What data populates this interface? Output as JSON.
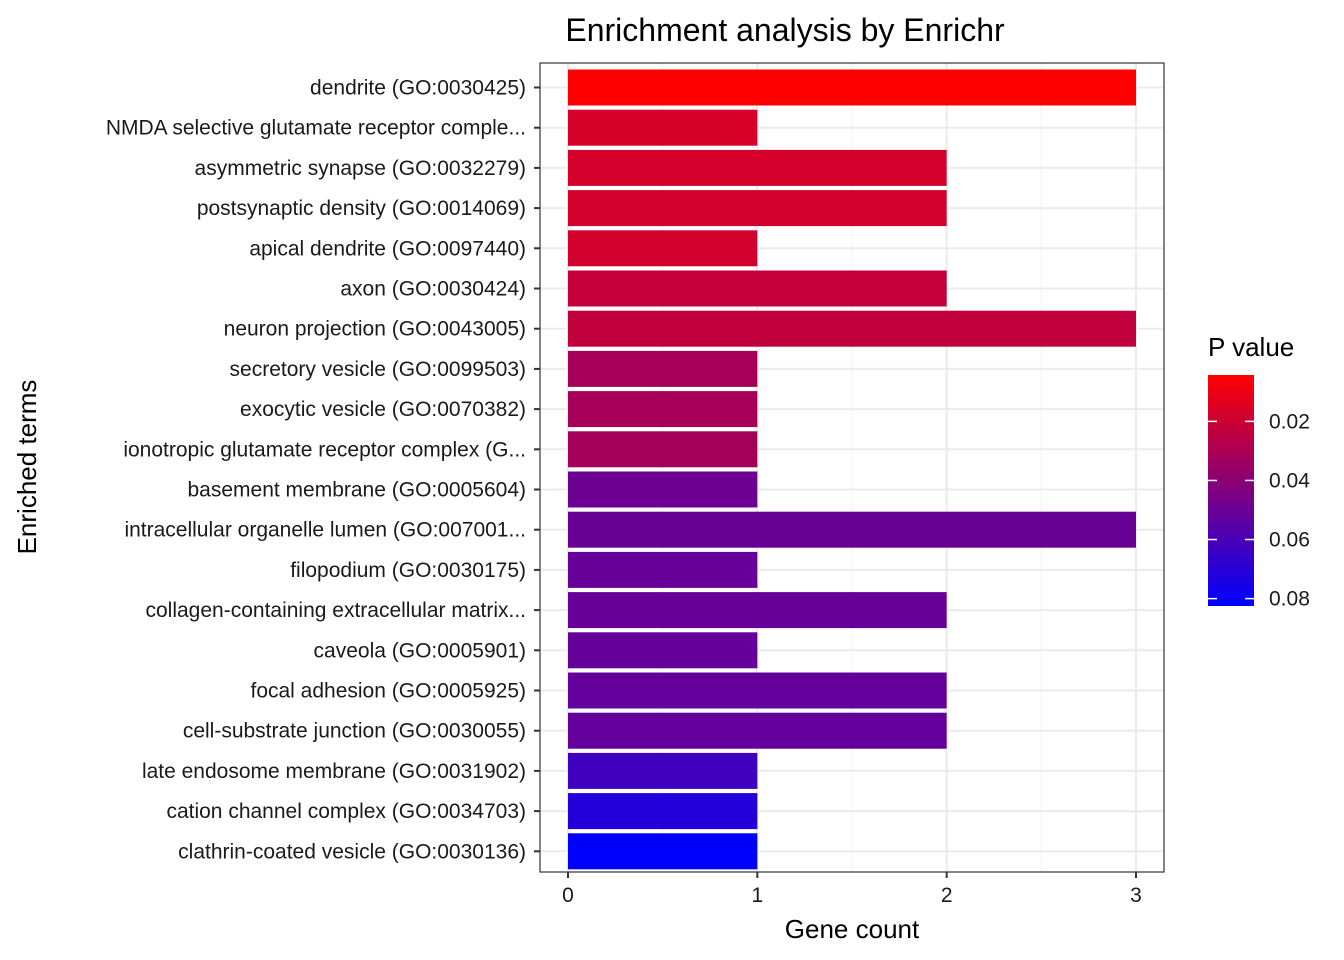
{
  "chart_data": {
    "type": "bar",
    "orientation": "horizontal",
    "title": "Enrichment analysis by Enrichr",
    "xlabel": "Gene count",
    "ylabel": "Enriched terms",
    "xlim": [
      0,
      3
    ],
    "xticks": [
      "0",
      "1",
      "2",
      "3"
    ],
    "grid": true,
    "categories": [
      "dendrite (GO:0030425)",
      "NMDA selective glutamate receptor comple...",
      "asymmetric synapse (GO:0032279)",
      "postsynaptic density (GO:0014069)",
      "apical dendrite (GO:0097440)",
      "axon (GO:0030424)",
      "neuron projection (GO:0043005)",
      "secretory vesicle (GO:0099503)",
      "exocytic vesicle (GO:0070382)",
      "ionotropic glutamate receptor complex (G...",
      "basement membrane (GO:0005604)",
      "intracellular organelle lumen (GO:007001...",
      "filopodium (GO:0030175)",
      "collagen-containing extracellular matrix...",
      "caveola (GO:0005901)",
      "focal adhesion (GO:0005925)",
      "cell-substrate junction (GO:0030055)",
      "late endosome membrane (GO:0031902)",
      "cation channel complex (GO:0034703)",
      "clathrin-coated vesicle (GO:0030136)"
    ],
    "values": [
      3,
      1,
      2,
      2,
      1,
      2,
      3,
      1,
      1,
      1,
      1,
      3,
      1,
      2,
      1,
      2,
      2,
      1,
      1,
      1
    ],
    "p_values": [
      0.0043,
      0.0168,
      0.0175,
      0.0178,
      0.0182,
      0.0228,
      0.0232,
      0.0312,
      0.0316,
      0.0318,
      0.0492,
      0.0502,
      0.0508,
      0.0512,
      0.0516,
      0.0518,
      0.0522,
      0.0628,
      0.0715,
      0.0825
    ],
    "color_scale": {
      "title": "P value",
      "low_color": "#ff0000",
      "high_color": "#0000ff",
      "range": [
        0.0043,
        0.0825
      ],
      "ticks": [
        {
          "value": 0.02,
          "label": "0.02"
        },
        {
          "value": 0.04,
          "label": "0.04"
        },
        {
          "value": 0.06,
          "label": "0.06"
        },
        {
          "value": 0.08,
          "label": "0.08"
        }
      ]
    },
    "legend_position": "right"
  }
}
